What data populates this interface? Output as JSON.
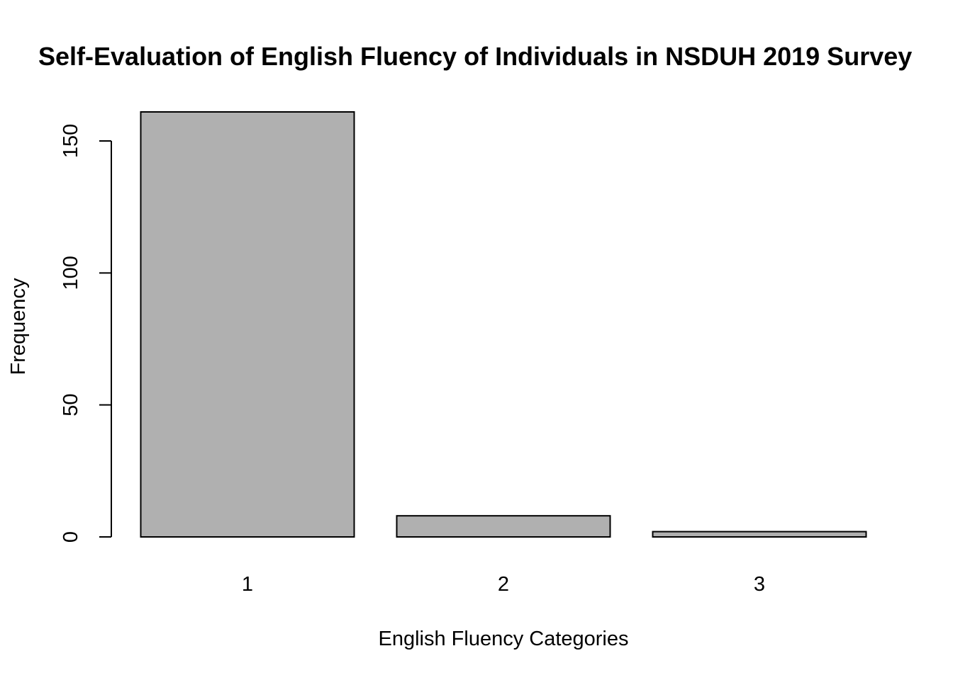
{
  "chart_data": {
    "type": "bar",
    "title": "Self-Evaluation of English Fluency of Individuals in NSDUH 2019 Survey",
    "xlabel": "English Fluency Categories",
    "ylabel": "Frequency",
    "categories": [
      "1",
      "2",
      "3"
    ],
    "values": [
      161,
      8,
      2
    ],
    "ylim": [
      0,
      161
    ],
    "yticks": [
      0,
      50,
      100,
      150
    ],
    "grid": false,
    "legend": "none",
    "bar_fill": "#b0b0b0",
    "bar_stroke": "#000000"
  }
}
